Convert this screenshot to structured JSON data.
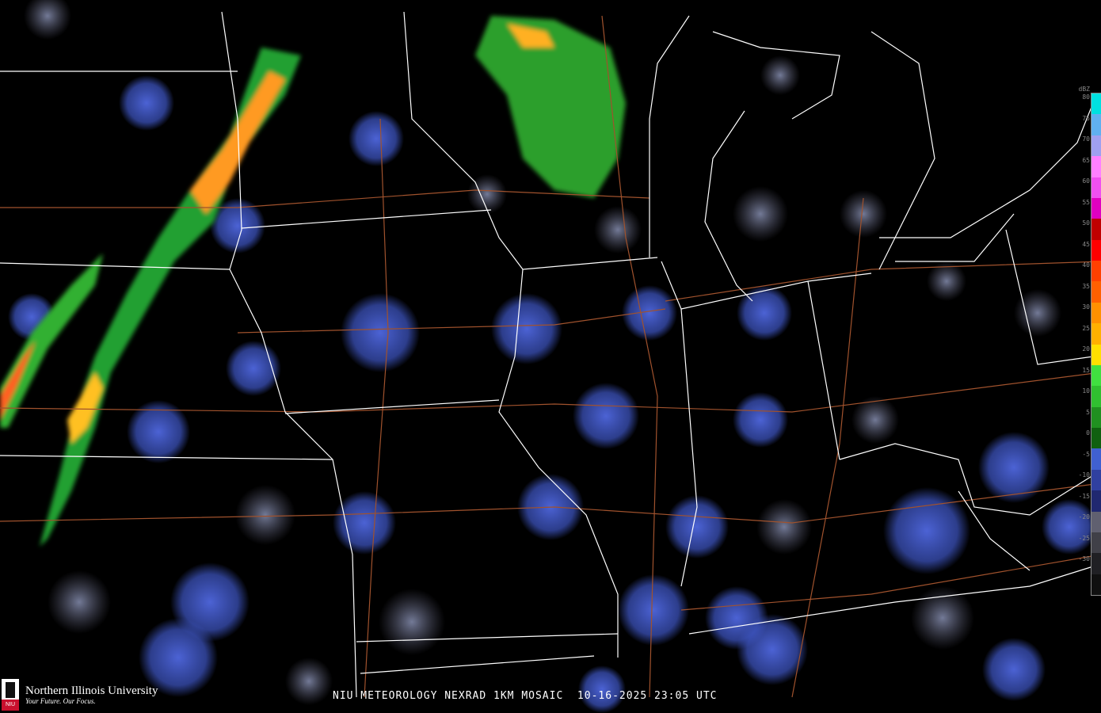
{
  "caption": "NIU METEOROLOGY NEXRAD 1KM MOSAIC  10-16-2025 23:05 UTC",
  "logo": {
    "name": "Northern Illinois University",
    "tagline": "Your Future. Our Focus.",
    "badge": "NIU"
  },
  "legend": {
    "unit": "dBZ",
    "ticks": [
      "80",
      "75",
      "70",
      "65",
      "60",
      "55",
      "50",
      "45",
      "40",
      "35",
      "30",
      "25",
      "20",
      "15",
      "10",
      "5",
      "0",
      "-5",
      "-10",
      "-15",
      "-20",
      "-25",
      "-30"
    ],
    "colors": [
      "#00e0e0",
      "#60b0f0",
      "#a0a0f0",
      "#ff80ff",
      "#f050f0",
      "#e000c0",
      "#c00000",
      "#ff0000",
      "#ff4000",
      "#ff6000",
      "#ff9000",
      "#ffb000",
      "#ffe000",
      "#40e040",
      "#30c030",
      "#209020",
      "#106010",
      "#4060d0",
      "#3040a0",
      "#202870",
      "#606070",
      "#404048",
      "#202024",
      "#101010"
    ]
  },
  "colors": {
    "background": "#000000",
    "state_borders": "#ffffff",
    "highways": "#a0522d",
    "radar_clear_air": "#4a5fd0"
  }
}
